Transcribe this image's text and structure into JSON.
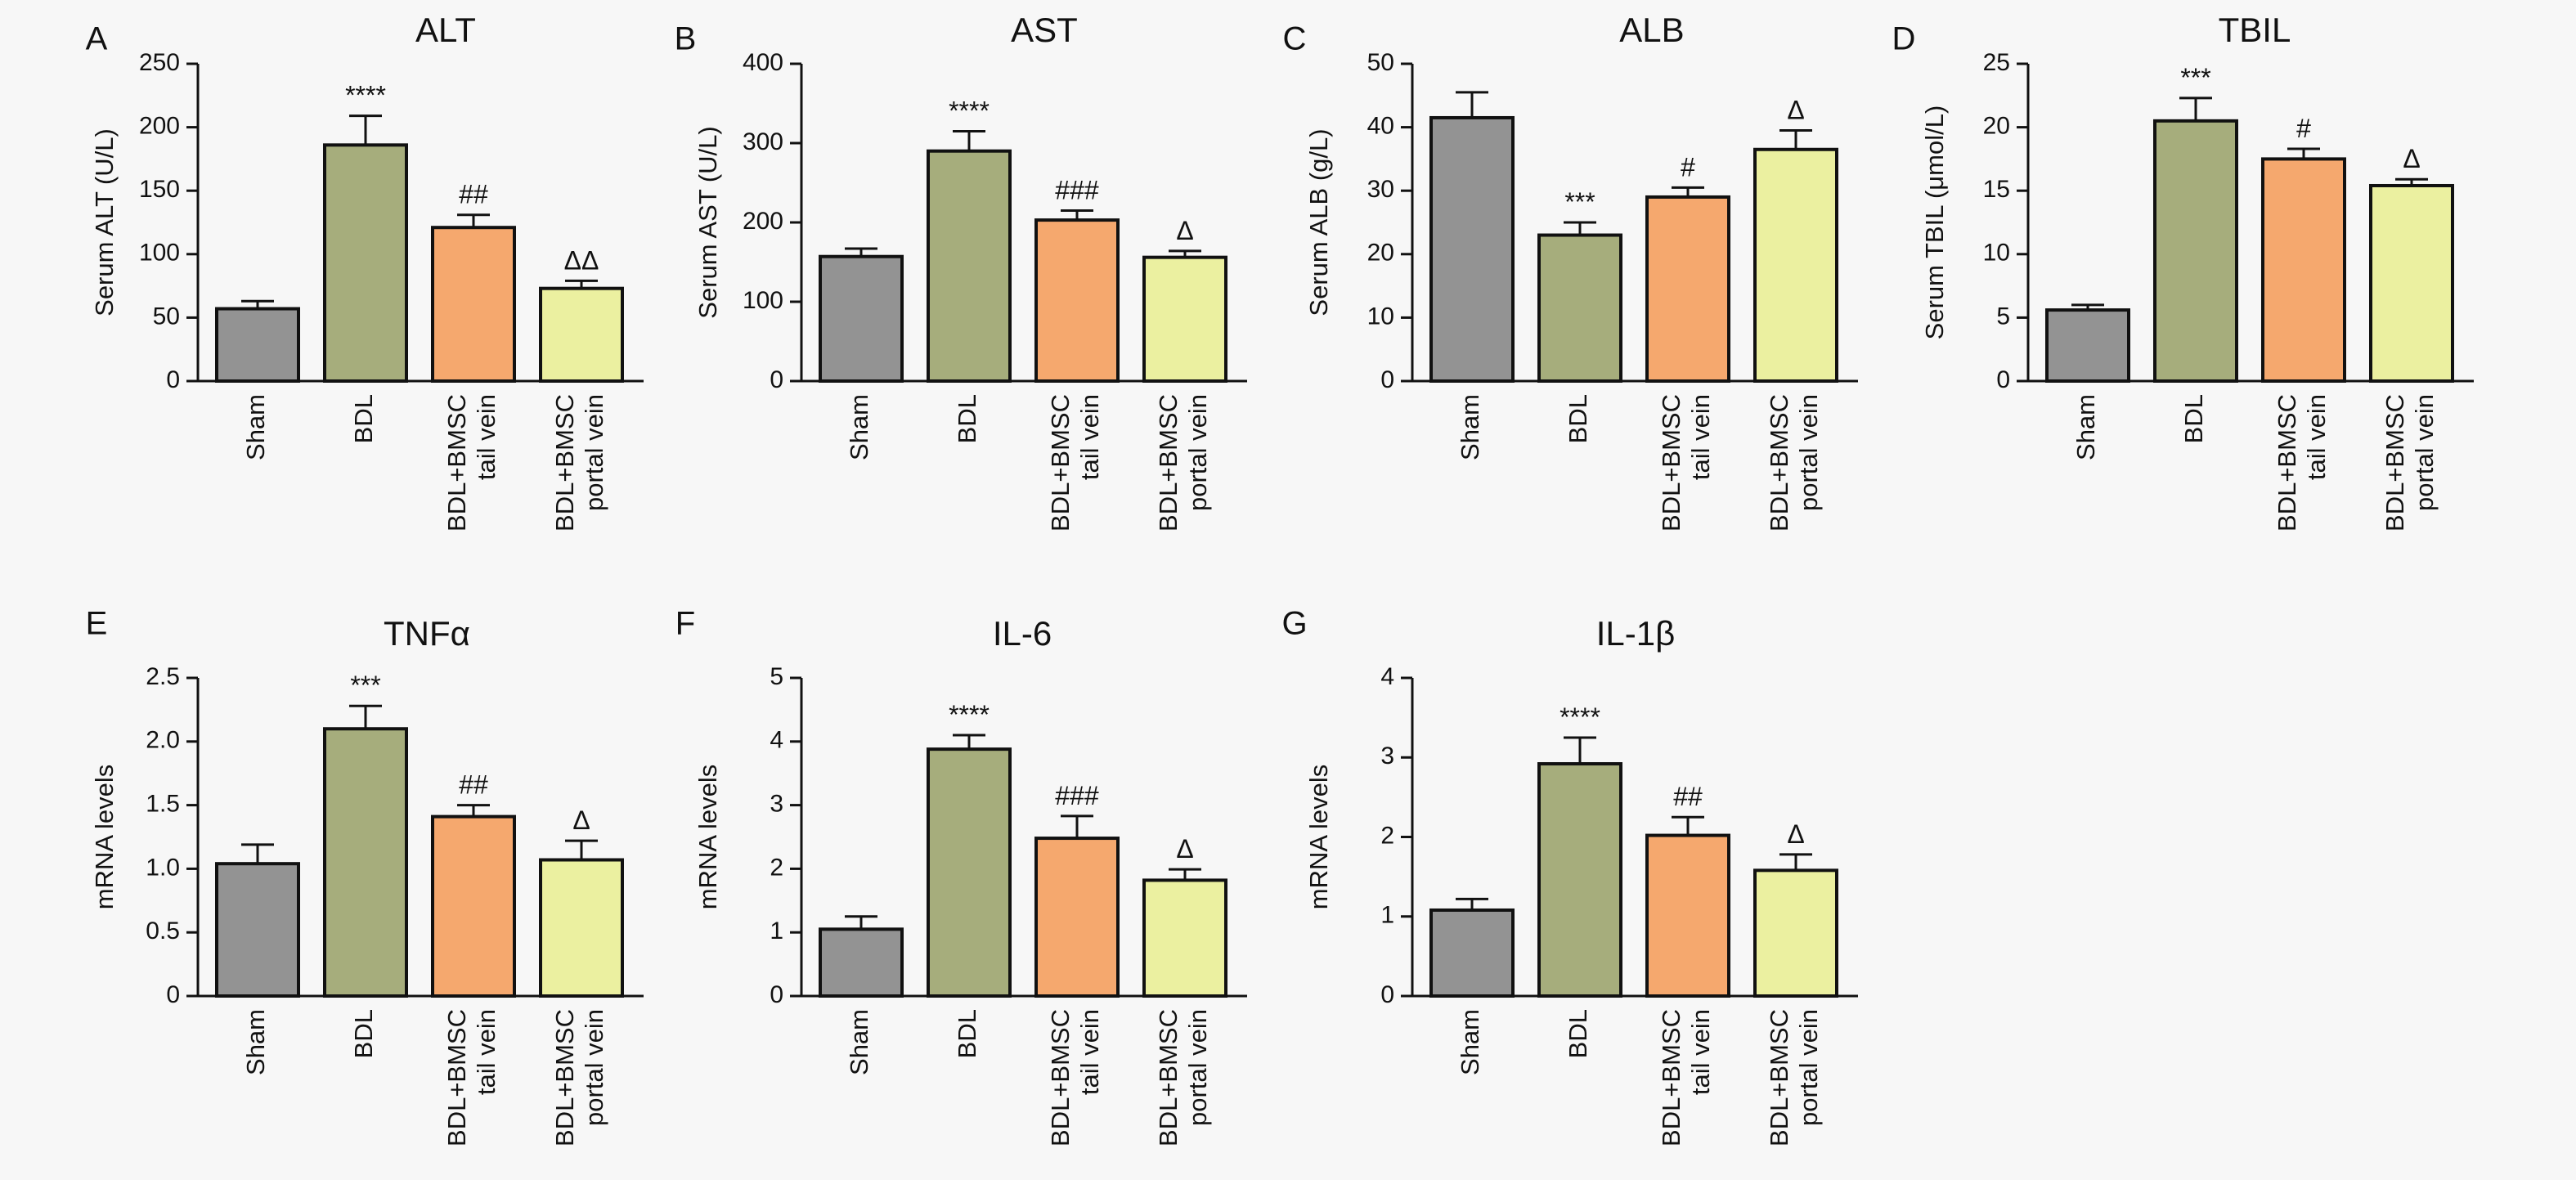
{
  "figure": {
    "background": "#f7f7f7",
    "categories": [
      "Sham",
      "BDL",
      "BDL+BMSC\ntail vein",
      "BDL+BMSC\nportal vein"
    ],
    "colors": [
      "#939393",
      "#a6ad7c",
      "#f5a86e",
      "#ebf0a0"
    ]
  },
  "chart_data": [
    {
      "panel": "A",
      "type": "bar",
      "title": "ALT",
      "ylabel": "Serum ALT (U/L)",
      "ylim": [
        0,
        250
      ],
      "yticks": [
        0,
        50,
        100,
        150,
        200,
        250
      ],
      "values": [
        57,
        186,
        121,
        73
      ],
      "errors": [
        6,
        23,
        10,
        6
      ],
      "annotations": [
        "",
        "****",
        "##",
        "ΔΔ"
      ]
    },
    {
      "panel": "B",
      "type": "bar",
      "title": "AST",
      "ylabel": "Serum AST (U/L)",
      "ylim": [
        0,
        400
      ],
      "yticks": [
        0,
        100,
        200,
        300,
        400
      ],
      "values": [
        157,
        290,
        203,
        156
      ],
      "errors": [
        10,
        25,
        12,
        8
      ],
      "annotations": [
        "",
        "****",
        "###",
        "Δ"
      ]
    },
    {
      "panel": "C",
      "type": "bar",
      "title": "ALB",
      "ylabel": "Serum ALB (g/L)",
      "ylim": [
        0,
        50
      ],
      "yticks": [
        0,
        10,
        20,
        30,
        40,
        50
      ],
      "values": [
        41.5,
        23,
        29,
        36.5
      ],
      "errors": [
        4,
        2,
        1.5,
        3
      ],
      "annotations": [
        "",
        "***",
        "#",
        "Δ"
      ]
    },
    {
      "panel": "D",
      "type": "bar",
      "title": "TBIL",
      "ylabel": "Serum TBIL (μmol/L)",
      "ylim": [
        0,
        25
      ],
      "yticks": [
        0,
        5,
        10,
        15,
        20,
        25
      ],
      "values": [
        5.6,
        20.5,
        17.5,
        15.4
      ],
      "errors": [
        0.4,
        1.8,
        0.8,
        0.5
      ],
      "annotations": [
        "",
        "***",
        "#",
        "Δ"
      ]
    },
    {
      "panel": "E",
      "type": "bar",
      "title": "TNFα",
      "ylabel": "mRNA levels",
      "ylim": [
        0,
        2.5
      ],
      "yticks": [
        0,
        0.5,
        1.0,
        1.5,
        2.0,
        2.5
      ],
      "ytick_labels": [
        "0",
        "0.5",
        "1.0",
        "1.5",
        "2.0",
        "2.5"
      ],
      "values": [
        1.04,
        2.1,
        1.41,
        1.07
      ],
      "errors": [
        0.15,
        0.18,
        0.09,
        0.15
      ],
      "annotations": [
        "",
        "***",
        "##",
        "Δ"
      ]
    },
    {
      "panel": "F",
      "type": "bar",
      "title": "IL-6",
      "ylabel": "mRNA levels",
      "ylim": [
        0,
        5
      ],
      "yticks": [
        0,
        1,
        2,
        3,
        4,
        5
      ],
      "values": [
        1.05,
        3.88,
        2.48,
        1.82
      ],
      "errors": [
        0.2,
        0.22,
        0.35,
        0.17
      ],
      "annotations": [
        "",
        "****",
        "###",
        "Δ"
      ]
    },
    {
      "panel": "G",
      "type": "bar",
      "title": "IL-1β",
      "ylabel": "mRNA levels",
      "ylim": [
        0,
        4
      ],
      "yticks": [
        0,
        1,
        2,
        3,
        4
      ],
      "values": [
        1.08,
        2.92,
        2.02,
        1.58
      ],
      "errors": [
        0.14,
        0.33,
        0.23,
        0.2
      ],
      "annotations": [
        "",
        "****",
        "##",
        "Δ"
      ]
    }
  ]
}
